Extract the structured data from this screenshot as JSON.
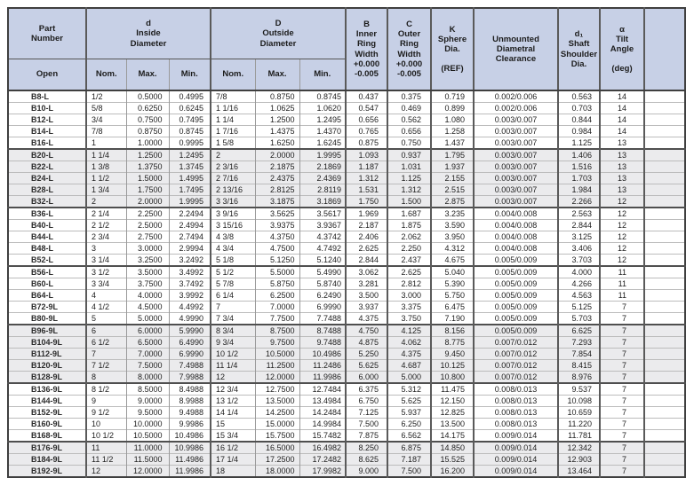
{
  "header": {
    "part_number": {
      "title": [
        "Part",
        "Number"
      ],
      "sub": "Open"
    },
    "inside_diameter": {
      "title": [
        "d",
        "Inside",
        "Diameter"
      ],
      "subs": [
        "Nom.",
        "Max.",
        "Min."
      ]
    },
    "outside_diameter": {
      "title": [
        "D",
        "Outside",
        "Diameter"
      ],
      "subs": [
        "Nom.",
        "Max.",
        "Min."
      ]
    },
    "inner_ring_width": [
      "B",
      "Inner",
      "Ring",
      "Width",
      "+0.000",
      "-0.005"
    ],
    "outer_ring_width": [
      "C",
      "Outer",
      "Ring",
      "Width",
      "+0.000",
      "-0.005"
    ],
    "sphere_dia": [
      "K",
      "Sphere",
      "Dia.",
      "",
      "(REF)"
    ],
    "unmounted_clearance": [
      "Unmounted",
      "Diametral",
      "Clearance"
    ],
    "shaft_shoulder_dia": [
      "d₁",
      "Shaft",
      "Shoulder",
      "Dia."
    ],
    "tilt_angle": [
      "α",
      "Tilt",
      "Angle",
      "",
      "(deg)"
    ]
  },
  "columns": [
    "Part Number Open",
    "d Nom.",
    "d Max.",
    "d Min.",
    "D Nom.",
    "D Max.",
    "D Min.",
    "B Inner Ring Width",
    "C Outer Ring Width",
    "K Sphere Dia. (REF)",
    "Unmounted Diametral Clearance",
    "d1 Shaft Shoulder Dia.",
    "Tilt Angle (deg)"
  ],
  "colors": {
    "header_bg": "#c7d0e6",
    "group_shade": "#ebebed",
    "rule_dark": "#4f4f4f",
    "rule_light": "#bcbcbc"
  },
  "table": {
    "groups": [
      {
        "shaded": false,
        "rows": [
          [
            "B8-L",
            "1/2",
            "0.5000",
            "0.4995",
            "7/8",
            "0.8750",
            "0.8745",
            "0.437",
            "0.375",
            "0.719",
            "0.002/0.006",
            "0.563",
            "14"
          ],
          [
            "B10-L",
            "5/8",
            "0.6250",
            "0.6245",
            "1 1/16",
            "1.0625",
            "1.0620",
            "0.547",
            "0.469",
            "0.899",
            "0.002/0.006",
            "0.703",
            "14"
          ],
          [
            "B12-L",
            "3/4",
            "0.7500",
            "0.7495",
            "1 1/4",
            "1.2500",
            "1.2495",
            "0.656",
            "0.562",
            "1.080",
            "0.003/0.007",
            "0.844",
            "14"
          ],
          [
            "B14-L",
            "7/8",
            "0.8750",
            "0.8745",
            "1 7/16",
            "1.4375",
            "1.4370",
            "0.765",
            "0.656",
            "1.258",
            "0.003/0.007",
            "0.984",
            "14"
          ],
          [
            "B16-L",
            "1",
            "1.0000",
            "0.9995",
            "1 5/8",
            "1.6250",
            "1.6245",
            "0.875",
            "0.750",
            "1.437",
            "0.003/0.007",
            "1.125",
            "13"
          ]
        ]
      },
      {
        "shaded": true,
        "rows": [
          [
            "B20-L",
            "1 1/4",
            "1.2500",
            "1.2495",
            "2",
            "2.0000",
            "1.9995",
            "1.093",
            "0.937",
            "1.795",
            "0.003/0.007",
            "1.406",
            "13"
          ],
          [
            "B22-L",
            "1 3/8",
            "1.3750",
            "1.3745",
            "2 3/16",
            "2.1875",
            "2.1869",
            "1.187",
            "1.031",
            "1.937",
            "0.003/0.007",
            "1.516",
            "13"
          ],
          [
            "B24-L",
            "1 1/2",
            "1.5000",
            "1.4995",
            "2 7/16",
            "2.4375",
            "2.4369",
            "1.312",
            "1.125",
            "2.155",
            "0.003/0.007",
            "1.703",
            "13"
          ],
          [
            "B28-L",
            "1 3/4",
            "1.7500",
            "1.7495",
            "2 13/16",
            "2.8125",
            "2.8119",
            "1.531",
            "1.312",
            "2.515",
            "0.003/0.007",
            "1.984",
            "13"
          ],
          [
            "B32-L",
            "2",
            "2.0000",
            "1.9995",
            "3 3/16",
            "3.1875",
            "3.1869",
            "1.750",
            "1.500",
            "2.875",
            "0.003/0.007",
            "2.266",
            "12"
          ]
        ]
      },
      {
        "shaded": false,
        "rows": [
          [
            "B36-L",
            "2 1/4",
            "2.2500",
            "2.2494",
            "3 9/16",
            "3.5625",
            "3.5617",
            "1.969",
            "1.687",
            "3.235",
            "0.004/0.008",
            "2.563",
            "12"
          ],
          [
            "B40-L",
            "2 1/2",
            "2.5000",
            "2.4994",
            "3 15/16",
            "3.9375",
            "3.9367",
            "2.187",
            "1.875",
            "3.590",
            "0.004/0.008",
            "2.844",
            "12"
          ],
          [
            "B44-L",
            "2 3/4",
            "2.7500",
            "2.7494",
            "4 3/8",
            "4.3750",
            "4.3742",
            "2.406",
            "2.062",
            "3.950",
            "0.004/0.008",
            "3.125",
            "12"
          ],
          [
            "B48-L",
            "3",
            "3.0000",
            "2.9994",
            "4 3/4",
            "4.7500",
            "4.7492",
            "2.625",
            "2.250",
            "4.312",
            "0.004/0.008",
            "3.406",
            "12"
          ],
          [
            "B52-L",
            "3 1/4",
            "3.2500",
            "3.2492",
            "5 1/8",
            "5.1250",
            "5.1240",
            "2.844",
            "2.437",
            "4.675",
            "0.005/0.009",
            "3.703",
            "12"
          ]
        ]
      },
      {
        "shaded": false,
        "rows": [
          [
            "B56-L",
            "3 1/2",
            "3.5000",
            "3.4992",
            "5 1/2",
            "5.5000",
            "5.4990",
            "3.062",
            "2.625",
            "5.040",
            "0.005/0.009",
            "4.000",
            "11"
          ],
          [
            "B60-L",
            "3 3/4",
            "3.7500",
            "3.7492",
            "5 7/8",
            "5.8750",
            "5.8740",
            "3.281",
            "2.812",
            "5.390",
            "0.005/0.009",
            "4.266",
            "11"
          ],
          [
            "B64-L",
            "4",
            "4.0000",
            "3.9992",
            "6 1/4",
            "6.2500",
            "6.2490",
            "3.500",
            "3.000",
            "5.750",
            "0.005/0.009",
            "4.563",
            "11"
          ],
          [
            "B72-9L",
            "4 1/2",
            "4.5000",
            "4.4992",
            "7",
            "7.0000",
            "6.9990",
            "3.937",
            "3.375",
            "6.475",
            "0.005/0.009",
            "5.125",
            "7"
          ],
          [
            "B80-9L",
            "5",
            "5.0000",
            "4.9990",
            "7 3/4",
            "7.7500",
            "7.7488",
            "4.375",
            "3.750",
            "7.190",
            "0.005/0.009",
            "5.703",
            "7"
          ]
        ]
      },
      {
        "shaded": true,
        "rows": [
          [
            "B96-9L",
            "6",
            "6.0000",
            "5.9990",
            "8 3/4",
            "8.7500",
            "8.7488",
            "4.750",
            "4.125",
            "8.156",
            "0.005/0.009",
            "6.625",
            "7"
          ],
          [
            "B104-9L",
            "6 1/2",
            "6.5000",
            "6.4990",
            "9 3/4",
            "9.7500",
            "9.7488",
            "4.875",
            "4.062",
            "8.775",
            "0.007/0.012",
            "7.293",
            "7"
          ],
          [
            "B112-9L",
            "7",
            "7.0000",
            "6.9990",
            "10 1/2",
            "10.5000",
            "10.4986",
            "5.250",
            "4.375",
            "9.450",
            "0.007/0.012",
            "7.854",
            "7"
          ],
          [
            "B120-9L",
            "7 1/2",
            "7.5000",
            "7.4988",
            "11 1/4",
            "11.2500",
            "11.2486",
            "5.625",
            "4.687",
            "10.125",
            "0.007/0.012",
            "8.415",
            "7"
          ],
          [
            "B128-9L",
            "8",
            "8.0000",
            "7.9988",
            "12",
            "12.0000",
            "11.9986",
            "6.000",
            "5.000",
            "10.800",
            "0.007/0.012",
            "8.976",
            "7"
          ]
        ]
      },
      {
        "shaded": false,
        "rows": [
          [
            "B136-9L",
            "8 1/2",
            "8.5000",
            "8.4988",
            "12 3/4",
            "12.7500",
            "12.7484",
            "6.375",
            "5.312",
            "11.475",
            "0.008/0.013",
            "9.537",
            "7"
          ],
          [
            "B144-9L",
            "9",
            "9.0000",
            "8.9988",
            "13 1/2",
            "13.5000",
            "13.4984",
            "6.750",
            "5.625",
            "12.150",
            "0.008/0.013",
            "10.098",
            "7"
          ],
          [
            "B152-9L",
            "9 1/2",
            "9.5000",
            "9.4988",
            "14 1/4",
            "14.2500",
            "14.2484",
            "7.125",
            "5.937",
            "12.825",
            "0.008/0.013",
            "10.659",
            "7"
          ],
          [
            "B160-9L",
            "10",
            "10.0000",
            "9.9986",
            "15",
            "15.0000",
            "14.9984",
            "7.500",
            "6.250",
            "13.500",
            "0.008/0.013",
            "11.220",
            "7"
          ],
          [
            "B168-9L",
            "10 1/2",
            "10.5000",
            "10.4986",
            "15 3/4",
            "15.7500",
            "15.7482",
            "7.875",
            "6.562",
            "14.175",
            "0.009/0.014",
            "11.781",
            "7"
          ]
        ]
      },
      {
        "shaded": true,
        "rows": [
          [
            "B176-9L",
            "11",
            "11.0000",
            "10.9986",
            "16 1/2",
            "16.5000",
            "16.4982",
            "8.250",
            "6.875",
            "14.850",
            "0.009/0.014",
            "12.342",
            "7"
          ],
          [
            "B184-9L",
            "11 1/2",
            "11.5000",
            "11.4986",
            "17 1/4",
            "17.2500",
            "17.2482",
            "8.625",
            "7.187",
            "15.525",
            "0.009/0.014",
            "12.903",
            "7"
          ],
          [
            "B192-9L",
            "12",
            "12.0000",
            "11.9986",
            "18",
            "18.0000",
            "17.9982",
            "9.000",
            "7.500",
            "16.200",
            "0.009/0.014",
            "13.464",
            "7"
          ]
        ]
      }
    ]
  }
}
